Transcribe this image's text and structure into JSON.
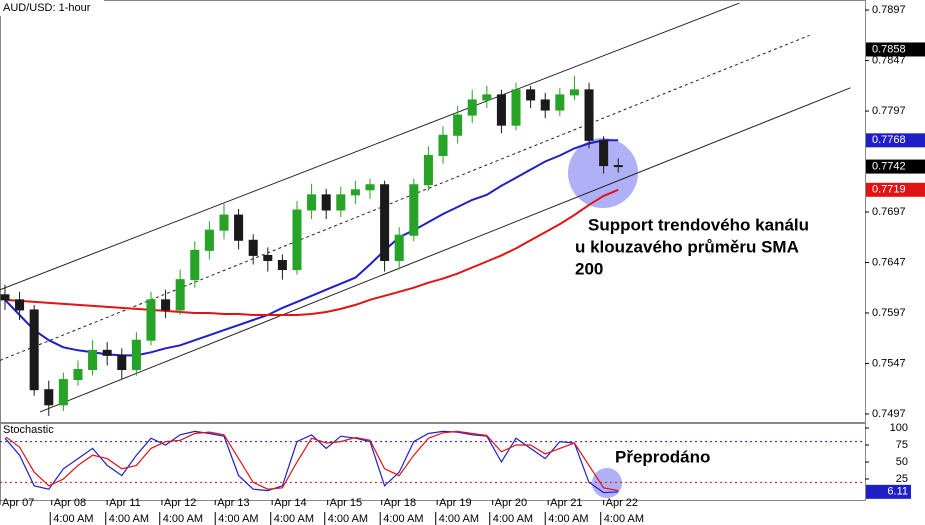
{
  "chart_data": [
    {
      "type": "candlestick",
      "title": "AUD/USD: 1-hour",
      "open": [
        0.7615,
        0.761,
        0.76,
        0.7521,
        0.7506,
        0.7531,
        0.7541,
        0.756,
        0.7555,
        0.7541,
        0.757,
        0.761,
        0.76,
        0.763,
        0.7659,
        0.7679,
        0.7694,
        0.7669,
        0.7654,
        0.7649,
        0.764,
        0.7699,
        0.7714,
        0.7699,
        0.7714,
        0.7719,
        0.7724,
        0.7649,
        0.7674,
        0.7724,
        0.7753,
        0.7773,
        0.7793,
        0.7808,
        0.7813,
        0.7783,
        0.7818,
        0.7808,
        0.7798,
        0.7813,
        0.7818,
        0.7768,
        0.7743
      ],
      "high": [
        0.7625,
        0.7618,
        0.7605,
        0.753,
        0.7538,
        0.755,
        0.757,
        0.7568,
        0.7562,
        0.7578,
        0.7618,
        0.762,
        0.764,
        0.7668,
        0.7688,
        0.7705,
        0.77,
        0.7675,
        0.7662,
        0.7655,
        0.7708,
        0.7725,
        0.772,
        0.7722,
        0.7728,
        0.773,
        0.7728,
        0.7682,
        0.773,
        0.7762,
        0.7782,
        0.7802,
        0.7818,
        0.7822,
        0.7818,
        0.7825,
        0.7822,
        0.7815,
        0.782,
        0.7832,
        0.7825,
        0.7772,
        0.775
      ],
      "low": [
        0.76,
        0.759,
        0.7515,
        0.7495,
        0.75,
        0.7525,
        0.7535,
        0.7545,
        0.7532,
        0.7535,
        0.7565,
        0.7592,
        0.7595,
        0.7622,
        0.765,
        0.767,
        0.766,
        0.7645,
        0.7638,
        0.763,
        0.7635,
        0.769,
        0.769,
        0.7692,
        0.7705,
        0.771,
        0.7638,
        0.764,
        0.7668,
        0.7718,
        0.7745,
        0.7765,
        0.7785,
        0.78,
        0.7775,
        0.7778,
        0.78,
        0.779,
        0.7792,
        0.7808,
        0.776,
        0.7735,
        0.7736
      ],
      "close": [
        0.761,
        0.76,
        0.7521,
        0.7506,
        0.7531,
        0.7541,
        0.756,
        0.7555,
        0.7541,
        0.757,
        0.761,
        0.76,
        0.763,
        0.7659,
        0.7679,
        0.7694,
        0.7669,
        0.7654,
        0.7649,
        0.764,
        0.7699,
        0.7714,
        0.7699,
        0.7714,
        0.7719,
        0.7724,
        0.7649,
        0.7674,
        0.7724,
        0.7753,
        0.7773,
        0.7793,
        0.7808,
        0.7813,
        0.7783,
        0.7818,
        0.7808,
        0.7798,
        0.7813,
        0.7818,
        0.7768,
        0.7743,
        0.7742
      ],
      "up_color": "#27a327",
      "down_color": "#1a1a1a",
      "sma": [
        {
          "color": "#1f1fc8",
          "values": [
            0.761,
            0.7595,
            0.758,
            0.757,
            0.7563,
            0.756,
            0.7558,
            0.7556,
            0.7555,
            0.7555,
            0.7558,
            0.7562,
            0.7565,
            0.757,
            0.7575,
            0.758,
            0.7585,
            0.759,
            0.7595,
            0.7602,
            0.7608,
            0.7614,
            0.762,
            0.7626,
            0.7632,
            0.7645,
            0.7659,
            0.7672,
            0.7679,
            0.7687,
            0.7695,
            0.7702,
            0.7709,
            0.7714,
            0.7723,
            0.7731,
            0.7739,
            0.7747,
            0.7753,
            0.776,
            0.7765,
            0.7768,
            0.7768
          ]
        },
        {
          "color": "#e01414",
          "values": [
            0.761,
            0.7609,
            0.7608,
            0.7607,
            0.7606,
            0.7605,
            0.7604,
            0.7603,
            0.7602,
            0.7601,
            0.76,
            0.7599,
            0.7598,
            0.7597,
            0.7597,
            0.7596,
            0.7596,
            0.7595,
            0.7595,
            0.7595,
            0.7595,
            0.7596,
            0.7598,
            0.7601,
            0.7605,
            0.761,
            0.7614,
            0.7618,
            0.7622,
            0.7627,
            0.7631,
            0.7636,
            0.7642,
            0.7648,
            0.7654,
            0.7661,
            0.7669,
            0.7677,
            0.7685,
            0.7694,
            0.7704,
            0.7713,
            0.7719
          ]
        }
      ],
      "trendlines": [
        {
          "x": [
            -0.34,
            50.3
          ],
          "y": [
            0.762,
            0.7904
          ],
          "dashed": false
        },
        {
          "x": [
            -0.34,
            55.1
          ],
          "y": [
            0.755,
            0.7872
          ],
          "dashed": true
        },
        {
          "x": [
            2.4,
            57.9
          ],
          "y": [
            0.7499,
            0.782
          ],
          "dashed": false
        }
      ],
      "xlim": [
        -0.34,
        58.9
      ],
      "ylim": [
        0.7489,
        0.7907
      ],
      "yticks": [
        0.7897,
        0.7847,
        0.7797,
        0.7697,
        0.7647,
        0.7597,
        0.7547,
        0.7497
      ],
      "price_tags": [
        {
          "value": 0.7858,
          "color": "#000000"
        },
        {
          "value": 0.7768,
          "color": "#1f1fc8"
        },
        {
          "value": 0.7742,
          "color": "#000000"
        },
        {
          "value": 0.7719,
          "color": "#e01414"
        }
      ],
      "xticks": [
        {
          "value": -0.34,
          "label": "Apr 07"
        },
        {
          "value": 3.2,
          "label": "Apr 08"
        },
        {
          "value": 7.0,
          "label": "Apr 11"
        },
        {
          "value": 10.75,
          "label": "Apr 12"
        },
        {
          "value": 14.4,
          "label": "Apr 13"
        },
        {
          "value": 18.3,
          "label": "Apr 14"
        },
        {
          "value": 22.1,
          "label": "Apr 15"
        },
        {
          "value": 25.8,
          "label": "Apr 18"
        },
        {
          "value": 29.6,
          "label": "Apr 19"
        },
        {
          "value": 33.4,
          "label": "Apr 20"
        },
        {
          "value": 37.2,
          "label": "Apr 21"
        },
        {
          "value": 41.0,
          "label": "Apr 22"
        }
      ],
      "time_ticks": [
        {
          "value": 3.1,
          "label": "4:00 AM"
        },
        {
          "value": 6.9,
          "label": "4:00 AM"
        },
        {
          "value": 10.6,
          "label": "4:00 AM"
        },
        {
          "value": 14.4,
          "label": "4:00 AM"
        },
        {
          "value": 18.2,
          "label": "4:00 AM"
        },
        {
          "value": 21.9,
          "label": "4:00 AM"
        },
        {
          "value": 25.7,
          "label": "4:00 AM"
        },
        {
          "value": 29.5,
          "label": "4:00 AM"
        },
        {
          "value": 33.2,
          "label": "4:00 AM"
        },
        {
          "value": 37.0,
          "label": "4:00 AM"
        },
        {
          "value": 40.8,
          "label": "4:00 AM"
        }
      ],
      "annotation": [
        "Support trendového kanálu",
        "u klouzavého průměru SMA",
        "200"
      ]
    },
    {
      "type": "line",
      "title": "Stochastic",
      "series": [
        {
          "color": "#1f1fc8",
          "values": [
            85,
            60,
            15,
            10,
            40,
            55,
            70,
            45,
            30,
            60,
            85,
            75,
            90,
            95,
            92,
            88,
            30,
            10,
            8,
            15,
            80,
            90,
            70,
            88,
            85,
            80,
            15,
            35,
            80,
            92,
            95,
            94,
            90,
            88,
            50,
            85,
            70,
            55,
            80,
            78,
            20,
            5,
            6.11
          ]
        },
        {
          "color": "#e01414",
          "values": [
            88,
            72,
            35,
            15,
            25,
            45,
            60,
            55,
            40,
            45,
            70,
            80,
            82,
            92,
            94,
            90,
            55,
            20,
            10,
            12,
            50,
            85,
            78,
            80,
            86,
            82,
            40,
            30,
            60,
            85,
            93,
            95,
            92,
            89,
            65,
            75,
            75,
            62,
            70,
            78,
            45,
            12,
            8
          ]
        }
      ],
      "ylim": [
        -5.9,
        107.4
      ],
      "yticks": [
        25,
        50,
        75,
        100
      ],
      "levels": [
        {
          "value": 80,
          "color": "#1f1fc8"
        },
        {
          "value": 20,
          "color": "#e01414"
        }
      ],
      "price_tag": {
        "value": 6.11,
        "color": "#1f1fc8"
      },
      "annotation": "Přeprodáno"
    }
  ]
}
